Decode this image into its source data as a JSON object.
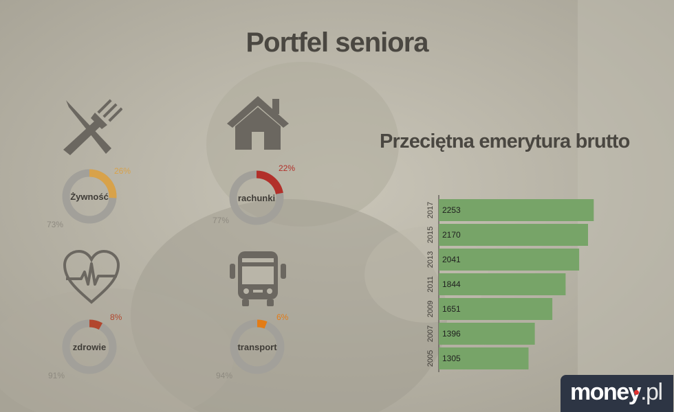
{
  "title": "Portfel seniora",
  "subtitle": "Przeciętna emerytura brutto",
  "colors": {
    "donut_rest": "#a2a09a",
    "food": "#d8a24a",
    "bills": "#b2302a",
    "health": "#b2462d",
    "transport": "#e37c17",
    "bars": "#77a468",
    "icons": "#6b6760"
  },
  "donuts": [
    {
      "id": "food",
      "label": "Żywność",
      "share_pct": 26,
      "share_text": "26%",
      "rest_text": "73%",
      "icon": "fork-knife-icon"
    },
    {
      "id": "bills",
      "label": "rachunki",
      "share_pct": 22,
      "share_text": "22%",
      "rest_text": "77%",
      "icon": "house-icon"
    },
    {
      "id": "health",
      "label": "zdrowie",
      "share_pct": 8,
      "share_text": "8%",
      "rest_text": "91%",
      "icon": "heart-pulse-icon"
    },
    {
      "id": "transport",
      "label": "transport",
      "share_pct": 6,
      "share_text": "6%",
      "rest_text": "94%",
      "icon": "bus-icon"
    }
  ],
  "chart_data": {
    "type": "bar",
    "orientation": "horizontal",
    "title": "Przeciętna emerytura brutto",
    "categories": [
      "2017",
      "2015",
      "2013",
      "2011",
      "2009",
      "2007",
      "2005"
    ],
    "values": [
      2253,
      2170,
      2041,
      1844,
      1651,
      1396,
      1305
    ],
    "xlim": [
      0,
      2400
    ],
    "grid": false
  },
  "logo": {
    "brand": "money",
    "tld": "pl"
  }
}
